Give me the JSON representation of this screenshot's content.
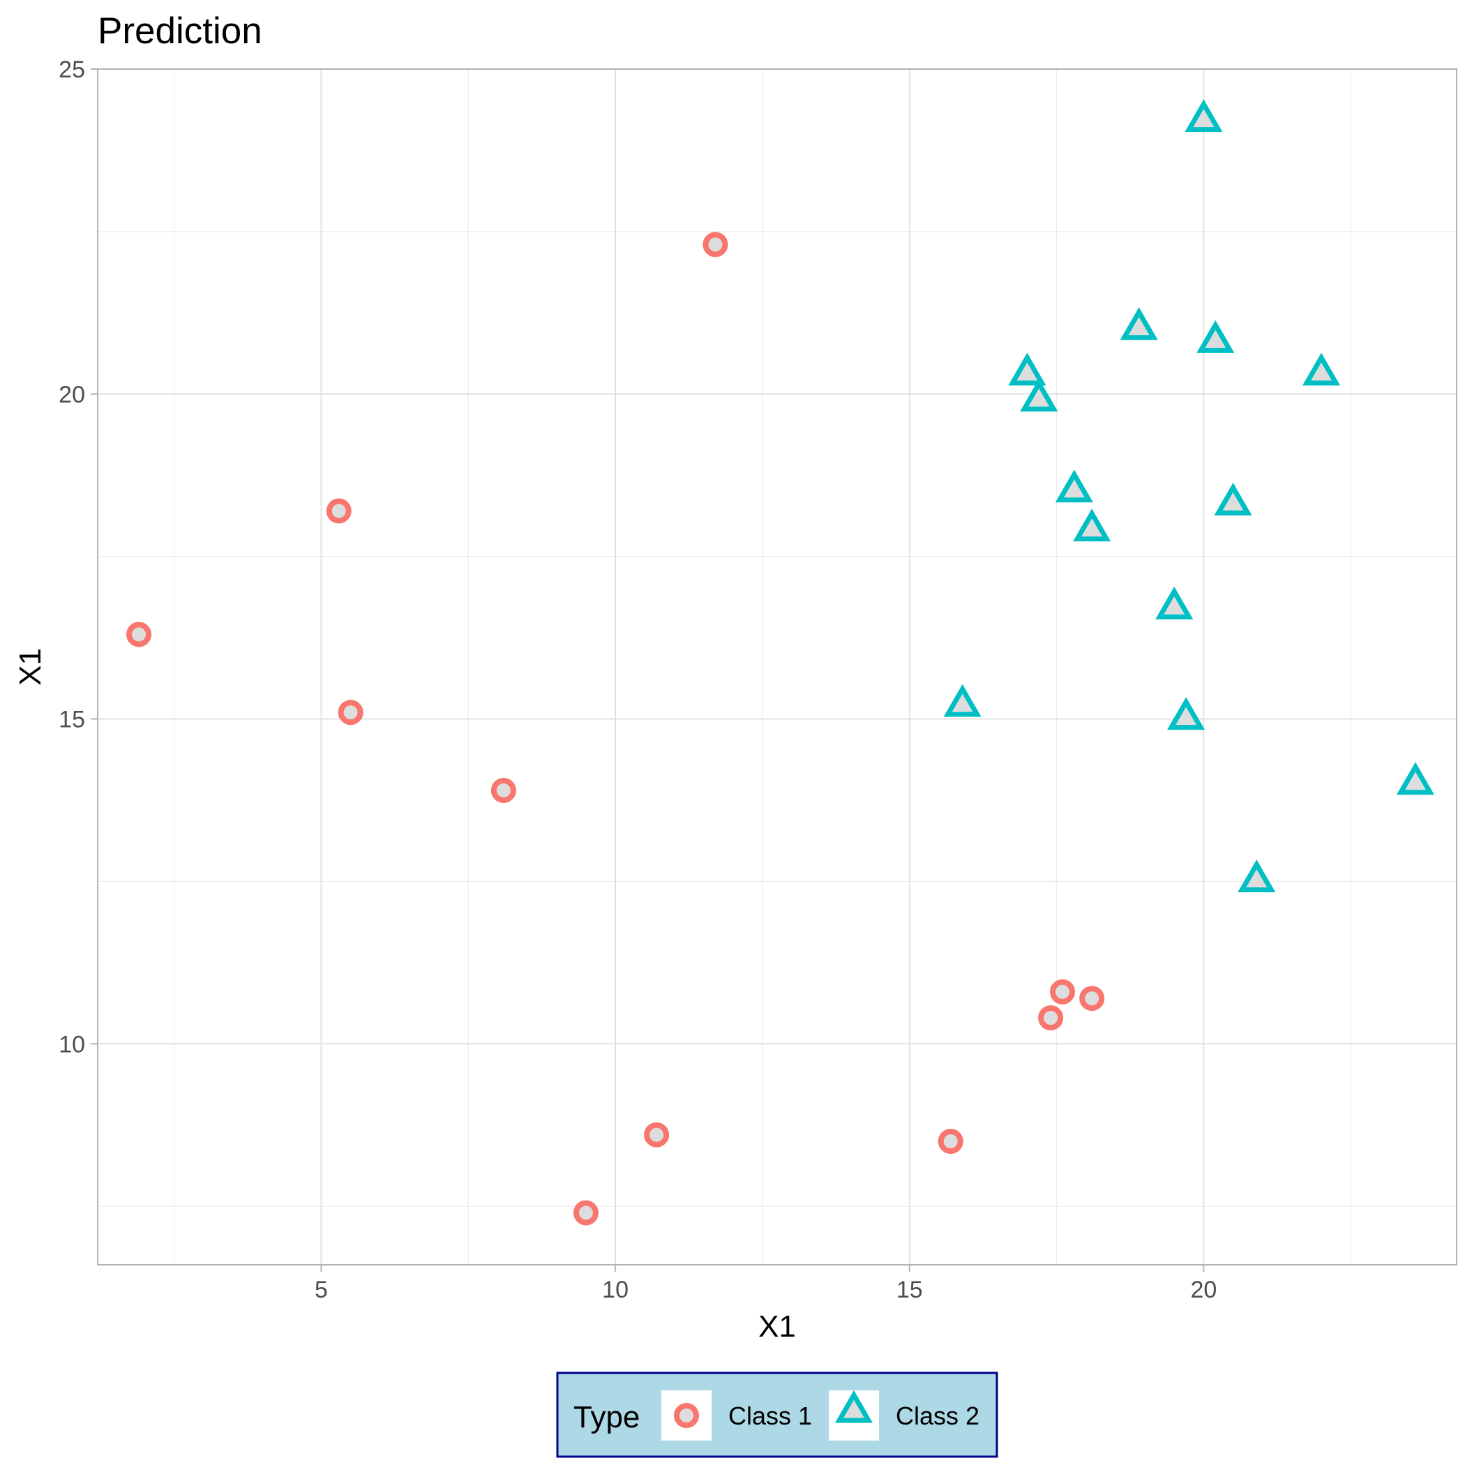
{
  "chart_data": {
    "type": "scatter",
    "title": "Prediction",
    "xlabel": "X1",
    "ylabel": "X1",
    "xlim": [
      1.2,
      24.3
    ],
    "ylim": [
      6.6,
      25
    ],
    "x_ticks": [
      5,
      10,
      15,
      20
    ],
    "y_ticks": [
      10,
      15,
      20,
      25
    ],
    "grid": true,
    "legend_position": "bottom",
    "legend": {
      "title": "Type",
      "background": "#add8e6",
      "border": "#00008b"
    },
    "series": [
      {
        "name": "Class 1",
        "shape": "circle",
        "color": "#f8766d",
        "points": [
          {
            "x": 1.9,
            "y": 16.3
          },
          {
            "x": 5.3,
            "y": 18.2
          },
          {
            "x": 5.5,
            "y": 15.1
          },
          {
            "x": 8.1,
            "y": 13.9
          },
          {
            "x": 11.7,
            "y": 22.3
          },
          {
            "x": 10.7,
            "y": 8.6
          },
          {
            "x": 9.5,
            "y": 7.4
          },
          {
            "x": 15.7,
            "y": 8.5
          },
          {
            "x": 17.4,
            "y": 10.4
          },
          {
            "x": 17.6,
            "y": 10.8
          },
          {
            "x": 18.1,
            "y": 10.7
          }
        ]
      },
      {
        "name": "Class 2",
        "shape": "triangle",
        "color": "#00bfc4",
        "points": [
          {
            "x": 20.0,
            "y": 24.2
          },
          {
            "x": 18.9,
            "y": 21.0
          },
          {
            "x": 20.2,
            "y": 20.8
          },
          {
            "x": 17.0,
            "y": 20.3
          },
          {
            "x": 17.2,
            "y": 19.9
          },
          {
            "x": 22.0,
            "y": 20.3
          },
          {
            "x": 17.8,
            "y": 18.5
          },
          {
            "x": 20.5,
            "y": 18.3
          },
          {
            "x": 18.1,
            "y": 17.9
          },
          {
            "x": 19.5,
            "y": 16.7
          },
          {
            "x": 15.9,
            "y": 15.2
          },
          {
            "x": 19.7,
            "y": 15.0
          },
          {
            "x": 23.6,
            "y": 14.0
          },
          {
            "x": 20.9,
            "y": 12.5
          }
        ]
      }
    ]
  }
}
